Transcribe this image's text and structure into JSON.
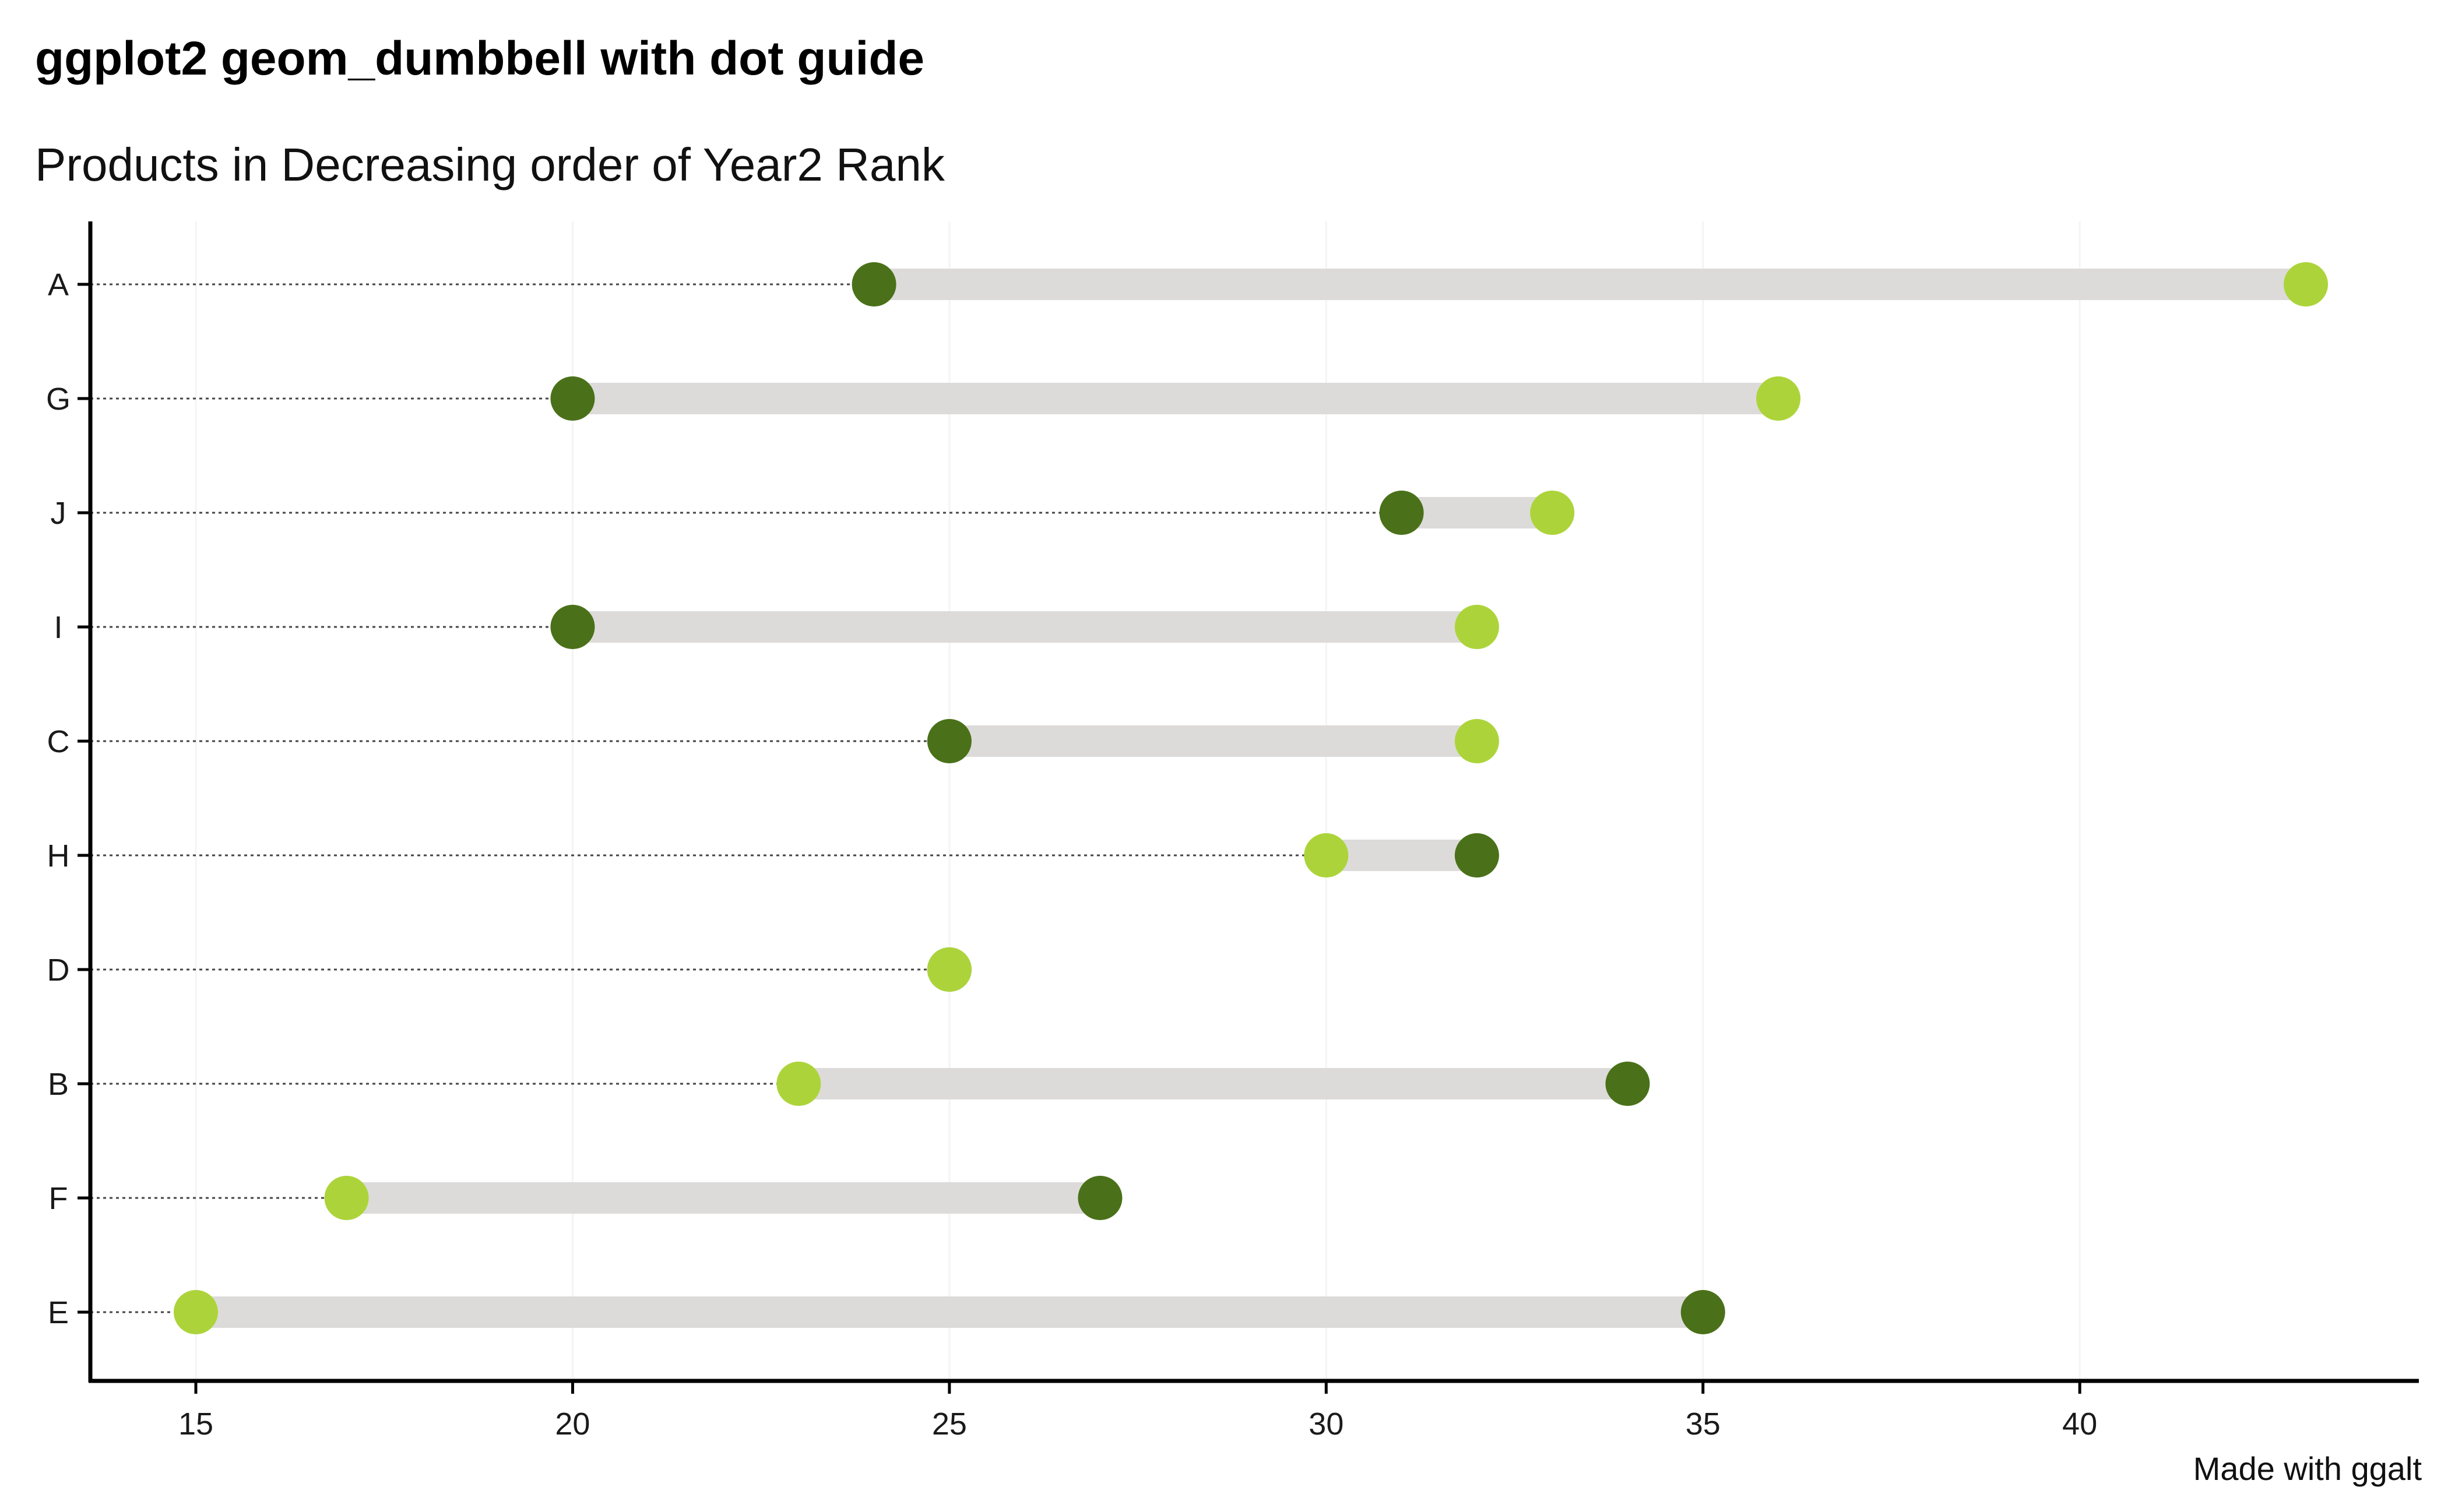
{
  "chart_data": {
    "type": "dumbbell",
    "title": "ggplot2 geom_dumbbell with dot guide",
    "subtitle": "Products in Decreasing order of Year2 Rank",
    "caption": "Made with ggalt",
    "xlabel": "",
    "ylabel": "",
    "xlim": [
      13.6,
      44.5
    ],
    "x_ticks": [
      15,
      20,
      25,
      30,
      35,
      40
    ],
    "x_tick_labels": [
      "15",
      "20",
      "25",
      "30",
      "35",
      "40"
    ],
    "categories": [
      "A",
      "G",
      "J",
      "I",
      "C",
      "H",
      "D",
      "B",
      "F",
      "E"
    ],
    "series": [
      {
        "name": "",
        "values": [
          24,
          20,
          31,
          20,
          25,
          32,
          25,
          34,
          27,
          35
        ]
      },
      {
        "name": "",
        "values": [
          43,
          36,
          33,
          32,
          32,
          30,
          25,
          23,
          17,
          15
        ]
      }
    ],
    "grid": "vertical-faint",
    "dot_guide": "dotted",
    "colors": {
      "point_start": "#4a7119",
      "point_end": "#acd43a",
      "bar": "#dcdbd9",
      "guide": "#444444",
      "axis": "#000000",
      "grid": "#f4f4f4"
    }
  }
}
